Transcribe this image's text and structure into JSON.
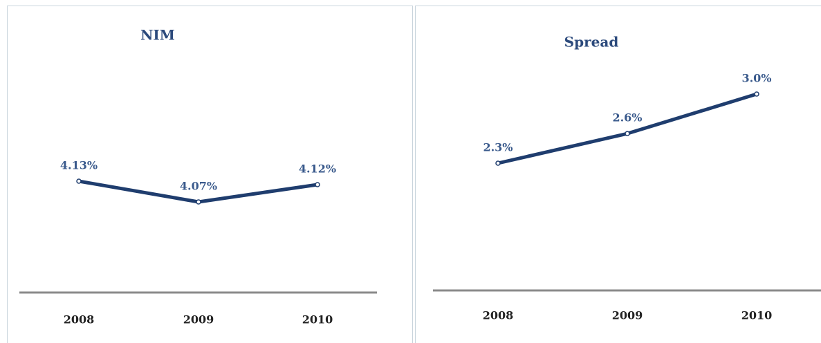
{
  "chart_data": [
    {
      "type": "line",
      "title": "NIM",
      "categories": [
        "2008",
        "2009",
        "2010"
      ],
      "series": [
        {
          "color": "#1f3d6e",
          "values": [
            4.13,
            4.07,
            4.12
          ],
          "value_labels": [
            "4.13%",
            "4.07%",
            "4.12%"
          ]
        }
      ]
    },
    {
      "type": "line",
      "title": "Spread",
      "categories": [
        "2008",
        "2009",
        "2010"
      ],
      "series": [
        {
          "color": "#1f3d6e",
          "values": [
            2.3,
            2.6,
            3.0
          ],
          "value_labels": [
            "2.3%",
            "2.6%",
            "3.0%"
          ]
        }
      ]
    }
  ]
}
